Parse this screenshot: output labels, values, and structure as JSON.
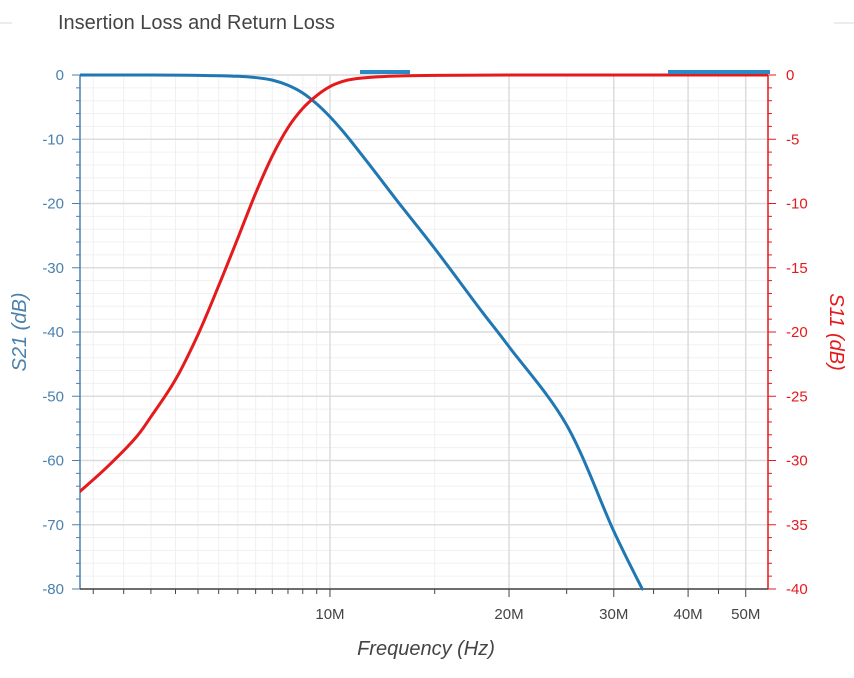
{
  "chart_data": {
    "type": "line",
    "title": "Insertion Loss and Return Loss",
    "xlabel": "Frequency (Hz)",
    "ylabel_left": "S21 (dB)",
    "ylabel_right": "S11 (dB)",
    "x_scale": "log",
    "xlim": [
      3800000,
      54500000
    ],
    "ylim_left": [
      -80,
      0
    ],
    "ylim_right": [
      -40,
      0
    ],
    "x_ticks": [
      {
        "value": 10000000,
        "label": "10M"
      },
      {
        "value": 20000000,
        "label": "20M"
      },
      {
        "value": 30000000,
        "label": "30M"
      },
      {
        "value": 40000000,
        "label": "40M"
      },
      {
        "value": 50000000,
        "label": "50M"
      }
    ],
    "y_ticks_left": [
      0,
      -10,
      -20,
      -30,
      -40,
      -50,
      -60,
      -70,
      -80
    ],
    "y_ticks_right": [
      0,
      -5,
      -10,
      -15,
      -20,
      -25,
      -30,
      -35,
      -40
    ],
    "grid": true,
    "series": [
      {
        "name": "S21 (dB)",
        "axis": "left",
        "color": "#1f77b4",
        "x": [
          3800000,
          5000000,
          6000000,
          7000000,
          7500000,
          8000000,
          8500000,
          9000000,
          9500000,
          10000000,
          10500000,
          11000000,
          12000000,
          13000000,
          15000000,
          18000000,
          20000000,
          25000000,
          30000000,
          33500000
        ],
        "y": [
          0,
          0,
          -0.05,
          -0.2,
          -0.4,
          -0.8,
          -1.6,
          -2.8,
          -4.5,
          -6.5,
          -8.7,
          -11,
          -15.5,
          -19.7,
          -27,
          -36.8,
          -42.3,
          -54.5,
          -71,
          -80
        ]
      },
      {
        "name": "S11 (dB)",
        "axis": "right",
        "color": "#e41a1c",
        "x": [
          3800000,
          4200000,
          4700000,
          5000000,
          5500000,
          6000000,
          6500000,
          7000000,
          7500000,
          8000000,
          8500000,
          9000000,
          9500000,
          10000000,
          10500000,
          11000000,
          12000000,
          13000000,
          15000000,
          20000000,
          30000000,
          54500000
        ],
        "y": [
          -32.4,
          -30.6,
          -28.3,
          -26.6,
          -23.7,
          -20.2,
          -16.4,
          -12.7,
          -9.2,
          -6.3,
          -4.1,
          -2.6,
          -1.6,
          -0.9,
          -0.5,
          -0.3,
          -0.15,
          -0.08,
          -0.03,
          0,
          0,
          0
        ]
      }
    ]
  }
}
